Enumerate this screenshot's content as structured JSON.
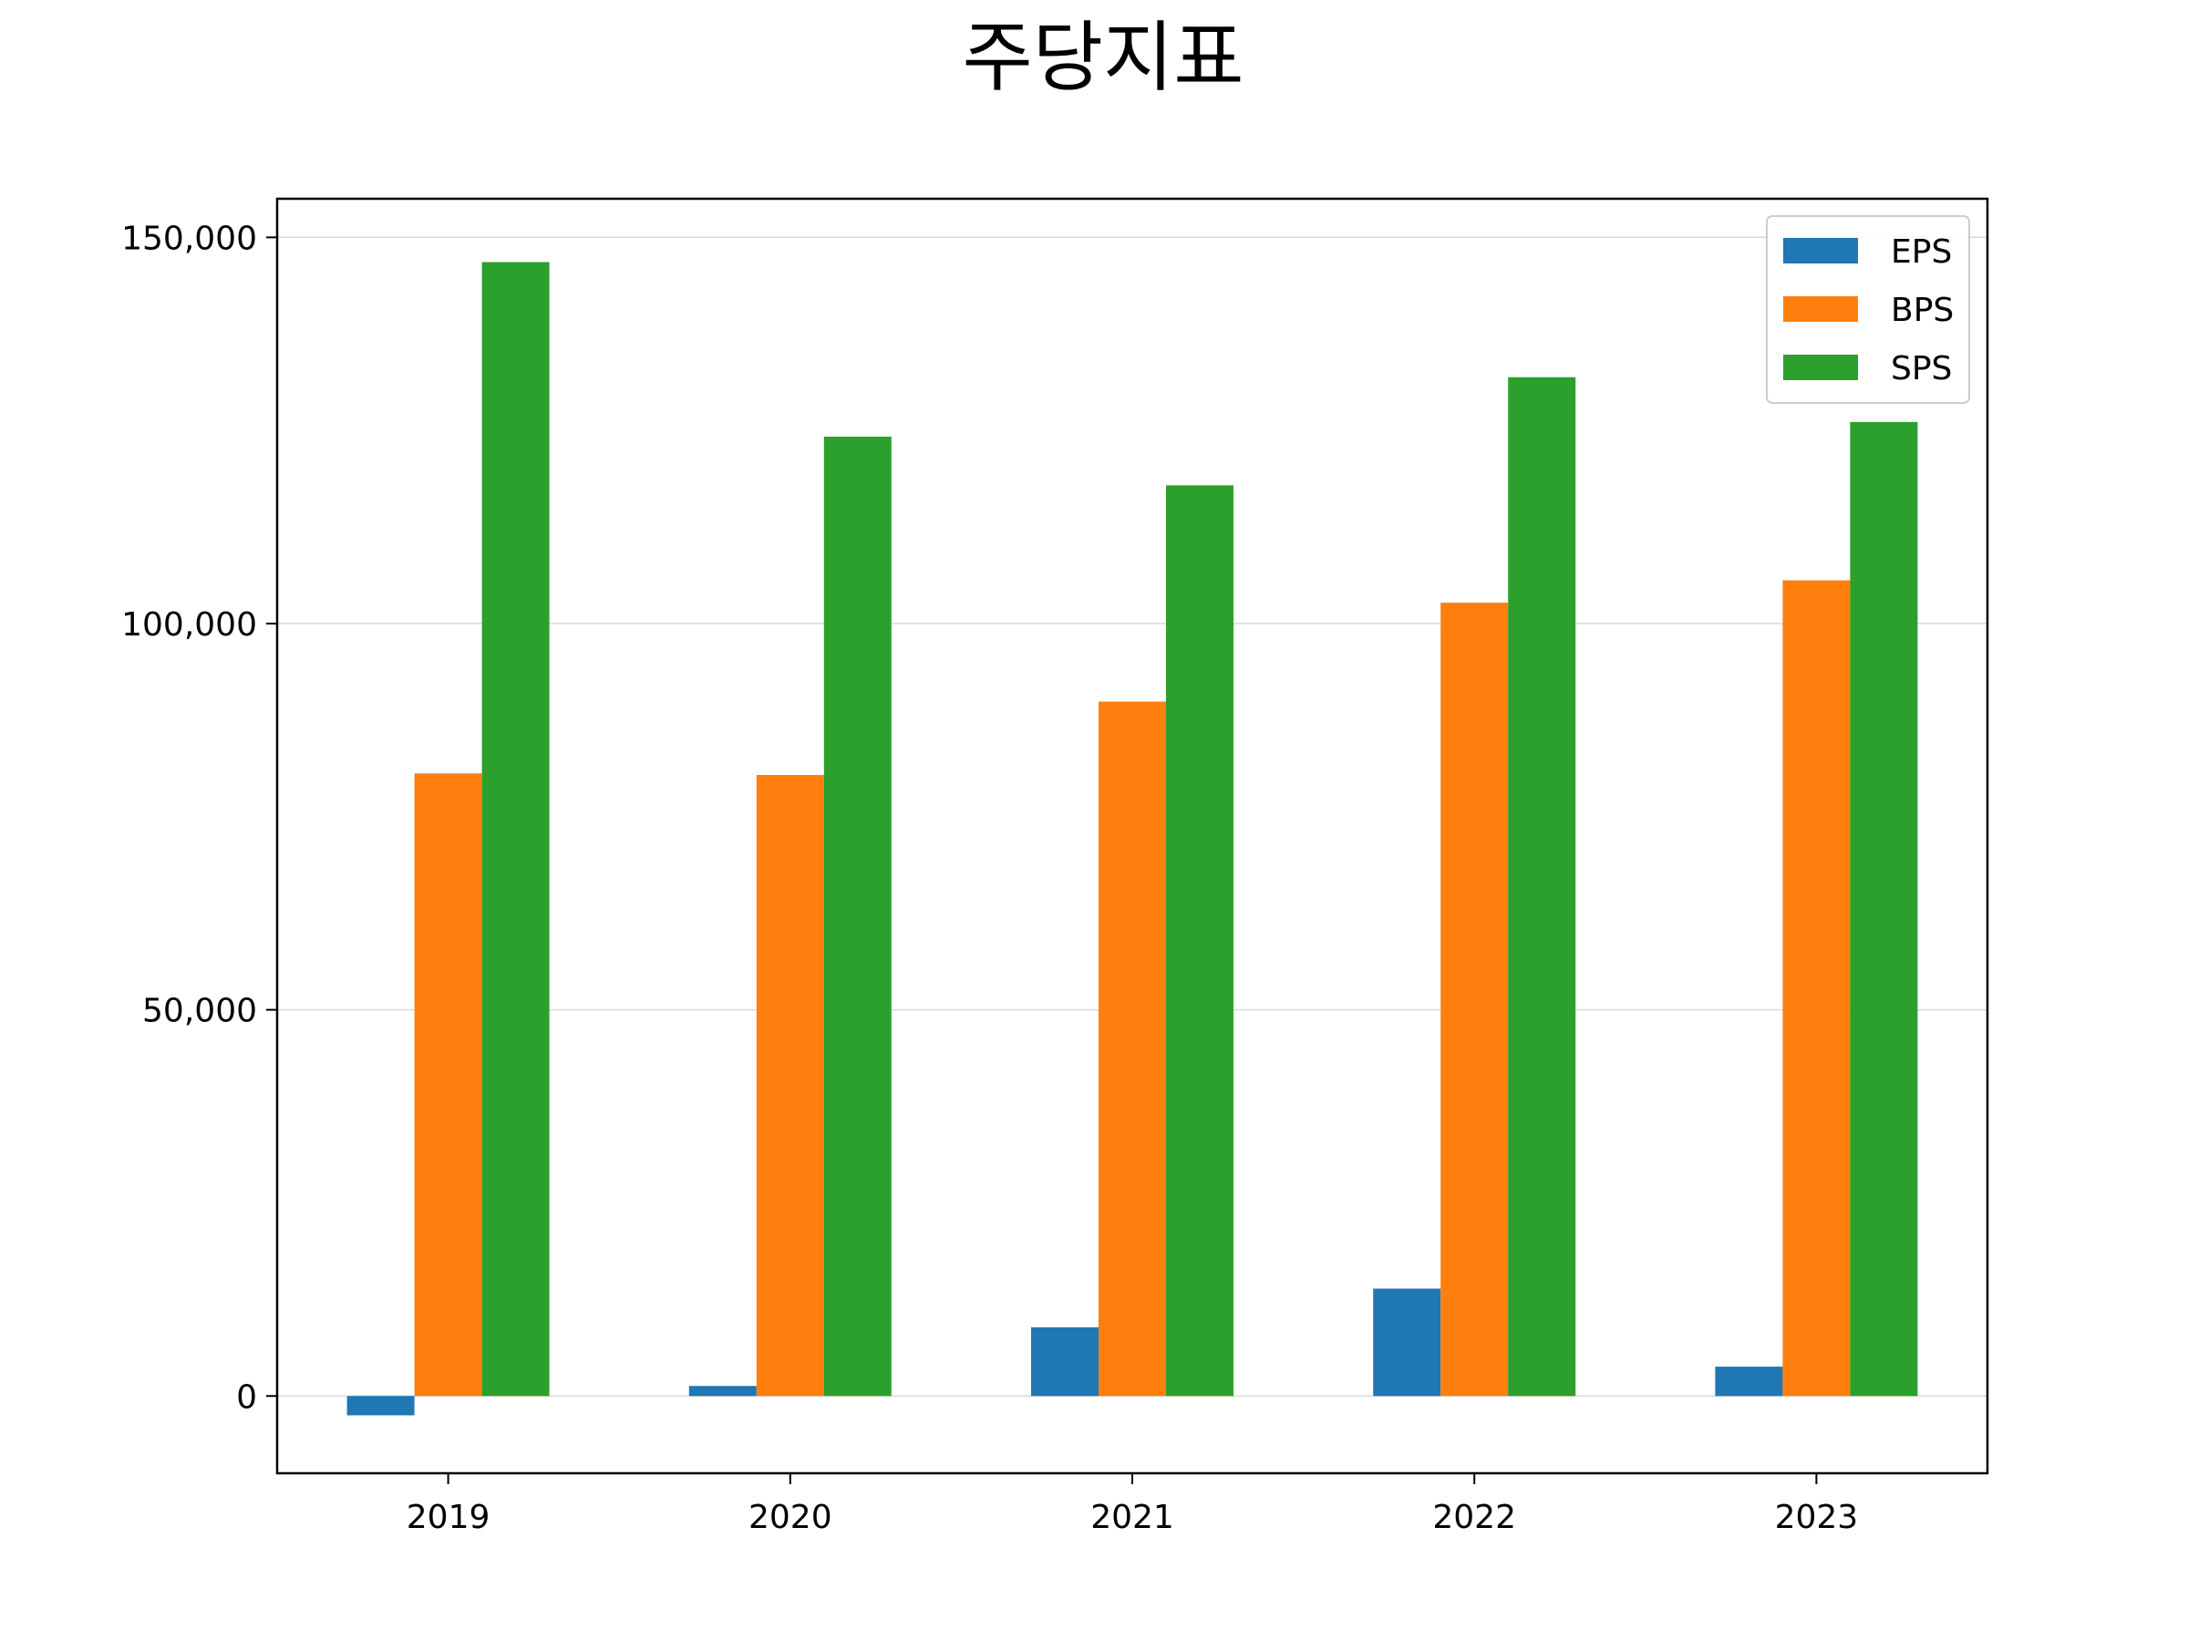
{
  "chart_data": {
    "type": "bar",
    "title": "주당지표",
    "xlabel": "",
    "ylabel": "",
    "categories": [
      "2019",
      "2020",
      "2021",
      "2022",
      "2023"
    ],
    "series": [
      {
        "name": "EPS",
        "color": "#1f77b4",
        "values": [
          -2500,
          1300,
          8900,
          13900,
          3800
        ]
      },
      {
        "name": "BPS",
        "color": "#ff7f0e",
        "values": [
          80600,
          80400,
          89900,
          102700,
          105600
        ]
      },
      {
        "name": "SPS",
        "color": "#2ca02c",
        "values": [
          146800,
          124200,
          117900,
          131900,
          126100
        ]
      }
    ],
    "ylim": [
      -10000,
      155000
    ],
    "yticks": [
      0,
      50000,
      100000,
      150000
    ],
    "ytick_labels": [
      "0",
      "50,000",
      "100,000",
      "150,000"
    ],
    "grid": "y",
    "legend": "top-right"
  }
}
